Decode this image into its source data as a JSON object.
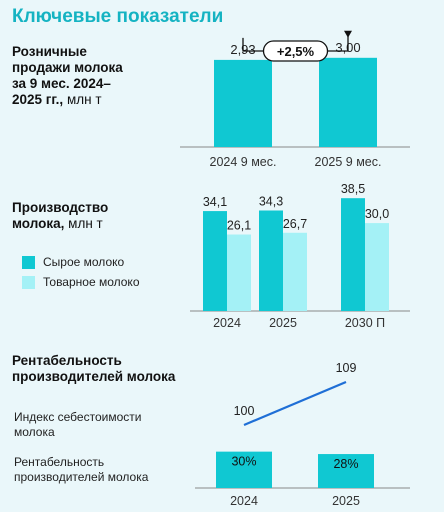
{
  "page_title": "Ключевые показатели",
  "colors": {
    "accent": "#15b3c2",
    "bar_primary": "#10c8d2",
    "bar_light": "#a4f1f6",
    "line": "#1f6fd6",
    "axis": "#888888"
  },
  "retail": {
    "title_lines": [
      "Розничные",
      "продажи молока",
      "за 9 мес. 2024–"
    ],
    "title_last": "2025 гг.,",
    "unit": "млн т",
    "growth_badge": "+2,5%"
  },
  "production": {
    "title_line1": "Производство",
    "title_line2": "молока,",
    "unit": "млн т",
    "legend": [
      {
        "label": "Сырое молоко",
        "color": "#10c8d2"
      },
      {
        "label": "Товарное молоко",
        "color": "#a4f1f6"
      }
    ]
  },
  "profitability": {
    "title_line1": "Рентабельность",
    "title_line2": "производителей молока",
    "row_labels": {
      "cost_index": [
        "Индекс себестоимости",
        "молока"
      ],
      "profitability": [
        "Рентабельность",
        "производителей молока"
      ]
    }
  },
  "chart_data": [
    {
      "type": "bar",
      "categories": [
        "2024 9 мес.",
        "2025 9 мес."
      ],
      "values": [
        2.93,
        3.0
      ],
      "value_labels": [
        "2,93",
        "3,00"
      ],
      "ylim": [
        0,
        3.7
      ],
      "annotation": "+2,5%"
    },
    {
      "type": "bar",
      "categories": [
        "2024",
        "2025",
        "2030 П"
      ],
      "series": [
        {
          "name": "Сырое молоко",
          "values": [
            34.1,
            34.3,
            38.5
          ],
          "labels": [
            "34,1",
            "34,3",
            "38,5"
          ]
        },
        {
          "name": "Товарное молоко",
          "values": [
            26.1,
            26.7,
            30.0
          ],
          "labels": [
            "26,1",
            "26,7",
            "30,0"
          ]
        }
      ],
      "ylim": [
        0,
        43
      ]
    },
    {
      "type": "bar",
      "categories": [
        "2024",
        "2025"
      ],
      "values": [
        30,
        28
      ],
      "value_labels": [
        "30%",
        "28%"
      ],
      "ylim": [
        0,
        33
      ]
    },
    {
      "type": "line",
      "categories": [
        "2024",
        "2025"
      ],
      "values": [
        100,
        109
      ],
      "value_labels": [
        "100",
        "109"
      ]
    }
  ]
}
